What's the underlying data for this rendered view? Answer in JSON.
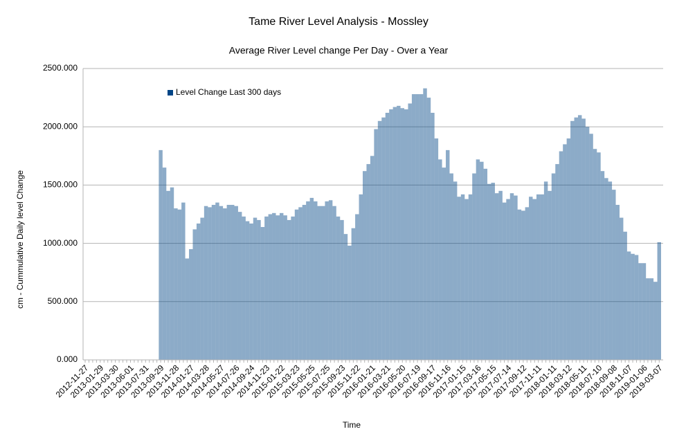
{
  "chart_data": {
    "type": "bar",
    "title": "Tame River Level Analysis - Mossley",
    "subtitle": "Average River Level change Per Day -  Over a Year",
    "y_label": "cm - Cummulative Daily level Change",
    "x_label": "Time",
    "categories": [
      "2012-11-27",
      null,
      null,
      null,
      "2013-01-29",
      null,
      null,
      null,
      "2013-03-30",
      null,
      null,
      null,
      "2013-06-01",
      null,
      null,
      null,
      "2013-07-31",
      null,
      null,
      null,
      "2013-09-29",
      null,
      null,
      null,
      "2013-11-28",
      null,
      null,
      null,
      "2014-01-27",
      null,
      null,
      null,
      "2014-03-28",
      null,
      null,
      null,
      "2014-05-27",
      null,
      null,
      null,
      "2014-07-26",
      null,
      null,
      null,
      "2014-09-24",
      null,
      null,
      null,
      "2014-11-23",
      null,
      null,
      null,
      "2015-01-22",
      null,
      null,
      null,
      "2015-03-23",
      null,
      null,
      null,
      "2015-05-25",
      null,
      null,
      null,
      "2015-07-25",
      null,
      null,
      null,
      "2015-09-23",
      null,
      null,
      null,
      "2015-11-22",
      null,
      null,
      null,
      "2016-01-21",
      null,
      null,
      null,
      "2016-03-21",
      null,
      null,
      null,
      "2016-05-20",
      null,
      null,
      null,
      "2016-07-19",
      null,
      null,
      null,
      "2016-09-17",
      null,
      null,
      null,
      "2016-11-16",
      null,
      null,
      null,
      "2017-01-15",
      null,
      null,
      null,
      "2017-03-16",
      null,
      null,
      null,
      "2017-05-15",
      null,
      null,
      null,
      "2017-07-14",
      null,
      null,
      null,
      "2017-09-12",
      null,
      null,
      null,
      "2017-11-11",
      null,
      null,
      null,
      "2018-01-11",
      null,
      null,
      null,
      "2018-03-12",
      null,
      null,
      null,
      "2018-05-11",
      null,
      null,
      null,
      "2018-07-10",
      null,
      null,
      null,
      "2018-09-08",
      null,
      null,
      null,
      "2018-11-07",
      null,
      null,
      null,
      "2019-01-06",
      null,
      null,
      null,
      "2019-03-07"
    ],
    "series": [
      {
        "name": "Level Change Last 300 days",
        "color": "#004586",
        "values": [
          0,
          0,
          0,
          0,
          0,
          0,
          0,
          0,
          0,
          0,
          0,
          0,
          0,
          0,
          0,
          0,
          0,
          0,
          0,
          0,
          1800,
          1650,
          1450,
          1480,
          1300,
          1290,
          1350,
          870,
          950,
          1120,
          1170,
          1220,
          1320,
          1310,
          1330,
          1350,
          1320,
          1300,
          1330,
          1330,
          1320,
          1270,
          1230,
          1190,
          1170,
          1220,
          1200,
          1140,
          1230,
          1250,
          1260,
          1240,
          1260,
          1240,
          1200,
          1230,
          1290,
          1310,
          1330,
          1360,
          1390,
          1360,
          1320,
          1320,
          1360,
          1370,
          1320,
          1230,
          1200,
          1080,
          980,
          1130,
          1250,
          1420,
          1620,
          1680,
          1750,
          1980,
          2050,
          2080,
          2120,
          2150,
          2170,
          2180,
          2160,
          2150,
          2200,
          2280,
          2280,
          2280,
          2330,
          2250,
          2120,
          1900,
          1720,
          1650,
          1800,
          1600,
          1530,
          1400,
          1420,
          1380,
          1420,
          1600,
          1720,
          1700,
          1640,
          1510,
          1520,
          1430,
          1450,
          1350,
          1380,
          1430,
          1410,
          1290,
          1280,
          1310,
          1400,
          1380,
          1420,
          1420,
          1530,
          1450,
          1600,
          1680,
          1790,
          1850,
          1900,
          2050,
          2080,
          2100,
          2070,
          2000,
          1940,
          1810,
          1780,
          1620,
          1560,
          1530,
          1460,
          1330,
          1220,
          1100,
          930,
          910,
          900,
          830,
          830,
          700,
          700,
          670,
          1010
        ]
      }
    ],
    "ylim": [
      0,
      2500
    ],
    "yticks": [
      {
        "value": 0,
        "label": "0.000"
      },
      {
        "value": 500,
        "label": "500.000"
      },
      {
        "value": 1000,
        "label": "1000.000"
      },
      {
        "value": 1500,
        "label": "1500.000"
      },
      {
        "value": 2000,
        "label": "2000.000"
      },
      {
        "value": 2500,
        "label": "2500.000"
      }
    ],
    "grid": true,
    "legend": "top-left"
  }
}
